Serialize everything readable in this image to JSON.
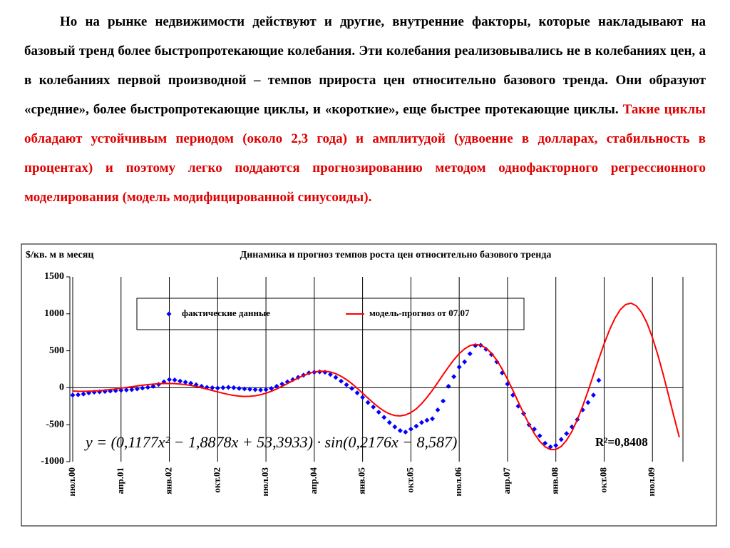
{
  "text": {
    "black": "Но на рынке недвижимости действуют и другие, внутренние факторы, которые накладывают на базовый тренд более быстропротекающие колебания. Эти колебания реализовывались не в колебаниях цен, а в колебаниях первой производной – темпов прироста цен относительно базового тренда. Они образуют «средние», более быстропротекающие циклы, и «короткие», еще быстрее протекающие циклы.",
    "red": "Такие циклы обладают устойчивым периодом (около 2,3 года) и амплитудой (удвоение в долларах, стабильность в процентах) и поэтому легко поддаются прогнозированию методом однофакторного регрессионного моделирования (модель модифицированной синусоиды)."
  },
  "chart_data": {
    "type": "line",
    "title": "Динамика и прогноз темпов роста цен относительно базового тренда",
    "y_label": "$/кв. м в месяц",
    "equation": "y = (0,1177x² − 1,8878x + 53,3933) · sin(0,2176x − 8,587)",
    "r_squared": "R²=0,8408",
    "ylim": [
      -1000,
      1500
    ],
    "yticks": [
      -1000,
      -500,
      0,
      500,
      1000,
      1500
    ],
    "grid": true,
    "categories": [
      "июл.00",
      null,
      null,
      null,
      null,
      null,
      null,
      null,
      null,
      "апр.01",
      null,
      null,
      null,
      null,
      null,
      null,
      null,
      null,
      "янв.02",
      null,
      null,
      null,
      null,
      null,
      null,
      null,
      null,
      "окт.02",
      null,
      null,
      null,
      null,
      null,
      null,
      null,
      null,
      "июл.03",
      null,
      null,
      null,
      null,
      null,
      null,
      null,
      null,
      "апр.04",
      null,
      null,
      null,
      null,
      null,
      null,
      null,
      null,
      "янв.05",
      null,
      null,
      null,
      null,
      null,
      null,
      null,
      null,
      "окт.05",
      null,
      null,
      null,
      null,
      null,
      null,
      null,
      null,
      "июл.06",
      null,
      null,
      null,
      null,
      null,
      null,
      null,
      null,
      "апр.07",
      null,
      null,
      null,
      null,
      null,
      null,
      null,
      null,
      "янв.08",
      null,
      null,
      null,
      null,
      null,
      null,
      null,
      null,
      "окт.08",
      null,
      null,
      null,
      null,
      null,
      null,
      null,
      null,
      "июл.09",
      null,
      null,
      null,
      null,
      null
    ],
    "series": [
      {
        "name": "фактические данные",
        "color": "#0000ff",
        "style": "markers",
        "values": [
          -100,
          -95,
          -85,
          -70,
          -60,
          -55,
          -50,
          -45,
          -40,
          -35,
          -30,
          -25,
          -15,
          -5,
          5,
          20,
          45,
          80,
          110,
          105,
          90,
          75,
          60,
          40,
          20,
          5,
          0,
          -5,
          0,
          5,
          0,
          -10,
          -15,
          -20,
          -25,
          -30,
          -25,
          -10,
          20,
          50,
          80,
          110,
          140,
          170,
          200,
          210,
          215,
          210,
          180,
          140,
          90,
          40,
          -10,
          -70,
          -130,
          -200,
          -260,
          -330,
          -400,
          -470,
          -530,
          -580,
          -600,
          -560,
          -520,
          -470,
          -440,
          -420,
          -300,
          -180,
          20,
          150,
          280,
          350,
          460,
          570,
          575,
          520,
          450,
          350,
          200,
          50,
          -100,
          -250,
          -350,
          -500,
          -560,
          -650,
          -750,
          -800,
          -780,
          -700,
          -620,
          -530,
          -430,
          -300,
          -200,
          -100,
          100,
          null,
          null,
          null,
          null,
          null,
          null,
          null,
          null,
          null,
          null,
          null,
          null,
          null,
          null,
          null
        ]
      },
      {
        "name": "модель-прогноз от 07.07",
        "color": "#ff0000",
        "style": "line",
        "values": [
          -45,
          -48,
          -49,
          -47,
          -44,
          -39,
          -32,
          -24,
          -16,
          -6,
          4,
          14,
          24,
          34,
          42,
          49,
          54,
          57,
          58,
          56,
          50,
          42,
          31,
          17,
          0,
          -18,
          -37,
          -56,
          -74,
          -91,
          -104,
          -113,
          -118,
          -116,
          -109,
          -94,
          -74,
          -47,
          -16,
          19,
          57,
          95,
          132,
          166,
          193,
          213,
          224,
          224,
          213,
          190,
          155,
          110,
          55,
          -7,
          -73,
          -140,
          -205,
          -265,
          -315,
          -353,
          -376,
          -381,
          -368,
          -336,
          -285,
          -215,
          -130,
          -34,
          70,
          177,
          281,
          378,
          461,
          526,
          570,
          587,
          576,
          536,
          467,
          372,
          252,
          115,
          -35,
          -192,
          -346,
          -492,
          -621,
          -725,
          -799,
          -837,
          -835,
          -794,
          -711,
          -590,
          -433,
          -248,
          -44,
          172,
          388,
          595,
          782,
          938,
          1056,
          1126,
          1144,
          1108,
          1016,
          872,
          678,
          444,
          180,
          -103,
          -391,
          -670
        ]
      }
    ]
  }
}
